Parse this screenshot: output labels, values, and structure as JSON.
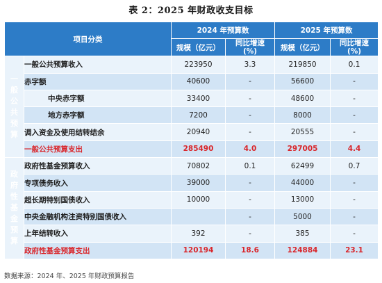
{
  "title": "表 2：2025 年财政收支目标",
  "header": {
    "item_category": "项目分类",
    "year_2024": "2024 年预算数",
    "year_2025": "2025 年预算数",
    "scale": "规模（亿元）",
    "growth": "同比增速",
    "growth_unit": "(%)"
  },
  "sections": {
    "general": "一般公共预算",
    "fund": "政府性基金预算"
  },
  "rows": [
    {
      "name": "一般公共预算收入",
      "v2024": "223950",
      "g2024": "3.3",
      "v2025": "219850",
      "g2025": "0.1"
    },
    {
      "name": "赤字额",
      "v2024": "40600",
      "g2024": "-",
      "v2025": "56600",
      "g2025": "-"
    },
    {
      "name": "中央赤字额",
      "v2024": "33400",
      "g2024": "-",
      "v2025": "48600",
      "g2025": "-"
    },
    {
      "name": "地方赤字额",
      "v2024": "7200",
      "g2024": "-",
      "v2025": "8000",
      "g2025": "-"
    },
    {
      "name": "调入资金及使用结转结余",
      "v2024": "20940",
      "g2024": "-",
      "v2025": "20555",
      "g2025": "-"
    },
    {
      "name": "一般公共预算支出",
      "v2024": "285490",
      "g2024": "4.0",
      "v2025": "297005",
      "g2025": "4.4"
    },
    {
      "name": "政府性基金预算收入",
      "v2024": "70802",
      "g2024": "0.1",
      "v2025": "62499",
      "g2025": "0.7"
    },
    {
      "name": "专项债务收入",
      "v2024": "39000",
      "g2024": "-",
      "v2025": "44000",
      "g2025": "-"
    },
    {
      "name": "超长期特别国债收入",
      "v2024": "10000",
      "g2024": "-",
      "v2025": "13000",
      "g2025": "-"
    },
    {
      "name": "中央金融机构注资特别国债收入",
      "v2024": "",
      "g2024": "-",
      "v2025": "5000",
      "g2025": "-"
    },
    {
      "name": "上年结转收入",
      "v2024": "392",
      "g2024": "-",
      "v2025": "385",
      "g2025": "-"
    },
    {
      "name": "政府性基金预算支出",
      "v2024": "120194",
      "g2024": "18.6",
      "v2025": "124884",
      "g2025": "23.1"
    }
  ],
  "source": "数据来源：2024 年、2025 年财政预算报告",
  "colors": {
    "header": "#2d7cc7",
    "light_row": "#eaf3fb",
    "mid_row": "#d2e4f5",
    "total_text": "#d9262b"
  }
}
